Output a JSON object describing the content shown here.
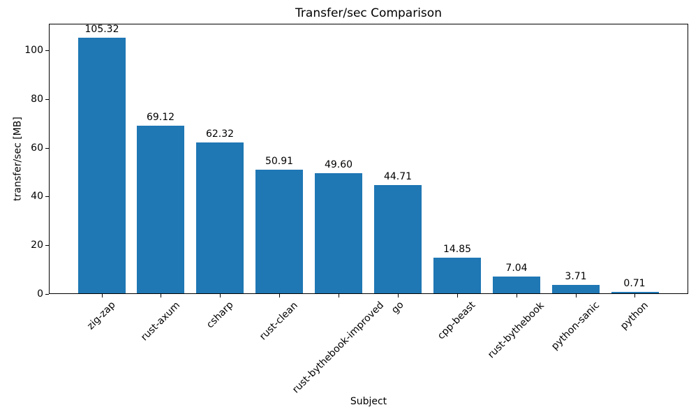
{
  "chart_data": {
    "type": "bar",
    "title": "Transfer/sec Comparison",
    "xlabel": "Subject",
    "ylabel": "transfer/sec [MB]",
    "categories": [
      "zig-zap",
      "rust-axum",
      "csharp",
      "rust-clean",
      "rust-bythebook-improved",
      "go",
      "cpp-beast",
      "rust-bythebook",
      "python-sanic",
      "python"
    ],
    "values": [
      105.32,
      69.12,
      62.32,
      50.91,
      49.6,
      44.71,
      14.85,
      7.04,
      3.71,
      0.71
    ],
    "bar_labels": [
      "105.32",
      "69.12",
      "62.32",
      "50.91",
      "49.60",
      "44.71",
      "14.85",
      "7.04",
      "3.71",
      "0.71"
    ],
    "yticks": [
      0,
      20,
      40,
      60,
      80,
      100
    ],
    "ylim": [
      0,
      111
    ],
    "bar_color": "#1f77b4",
    "text_color": "#000000",
    "grid": false,
    "legend": "none",
    "x_tick_rotation_deg": 45,
    "bar_width_fraction": 0.8
  }
}
